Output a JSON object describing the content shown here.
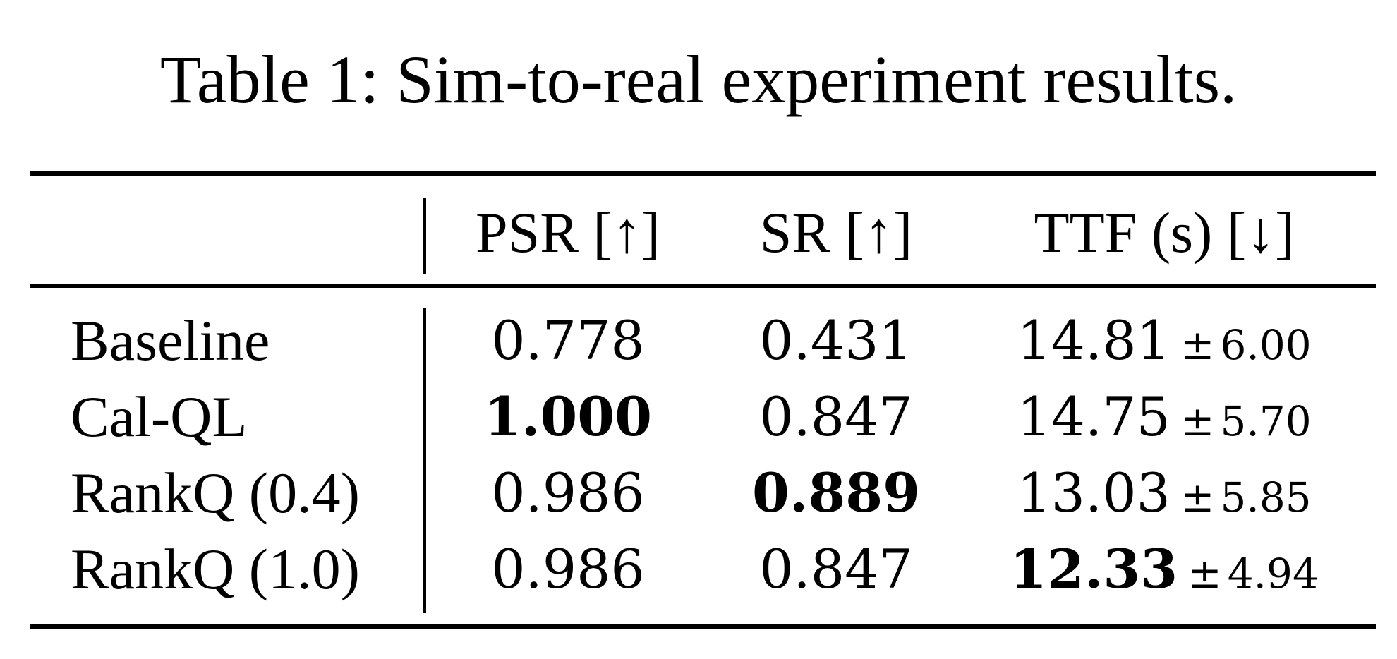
{
  "caption": "Table 1: Sim-to-real experiment results.",
  "columns": {
    "psr": "PSR [↑]",
    "sr": "SR [↑]",
    "ttf": "TTF (s) [↓]"
  },
  "rows": [
    {
      "method": "Baseline",
      "psr": "0.778",
      "sr": "0.431",
      "ttf_mean": "14.81",
      "ttf_pm": "±",
      "ttf_std": "6.00",
      "bold": []
    },
    {
      "method": "Cal-QL",
      "psr": "1.000",
      "sr": "0.847",
      "ttf_mean": "14.75",
      "ttf_pm": "±",
      "ttf_std": "5.70",
      "bold": [
        "psr"
      ]
    },
    {
      "method": "RankQ (0.4)",
      "psr": "0.986",
      "sr": "0.889",
      "ttf_mean": "13.03",
      "ttf_pm": "±",
      "ttf_std": "5.85",
      "bold": [
        "sr"
      ]
    },
    {
      "method": "RankQ (1.0)",
      "psr": "0.986",
      "sr": "0.847",
      "ttf_mean": "12.33",
      "ttf_pm": "±",
      "ttf_std": "4.94",
      "bold": [
        "ttf"
      ]
    }
  ]
}
